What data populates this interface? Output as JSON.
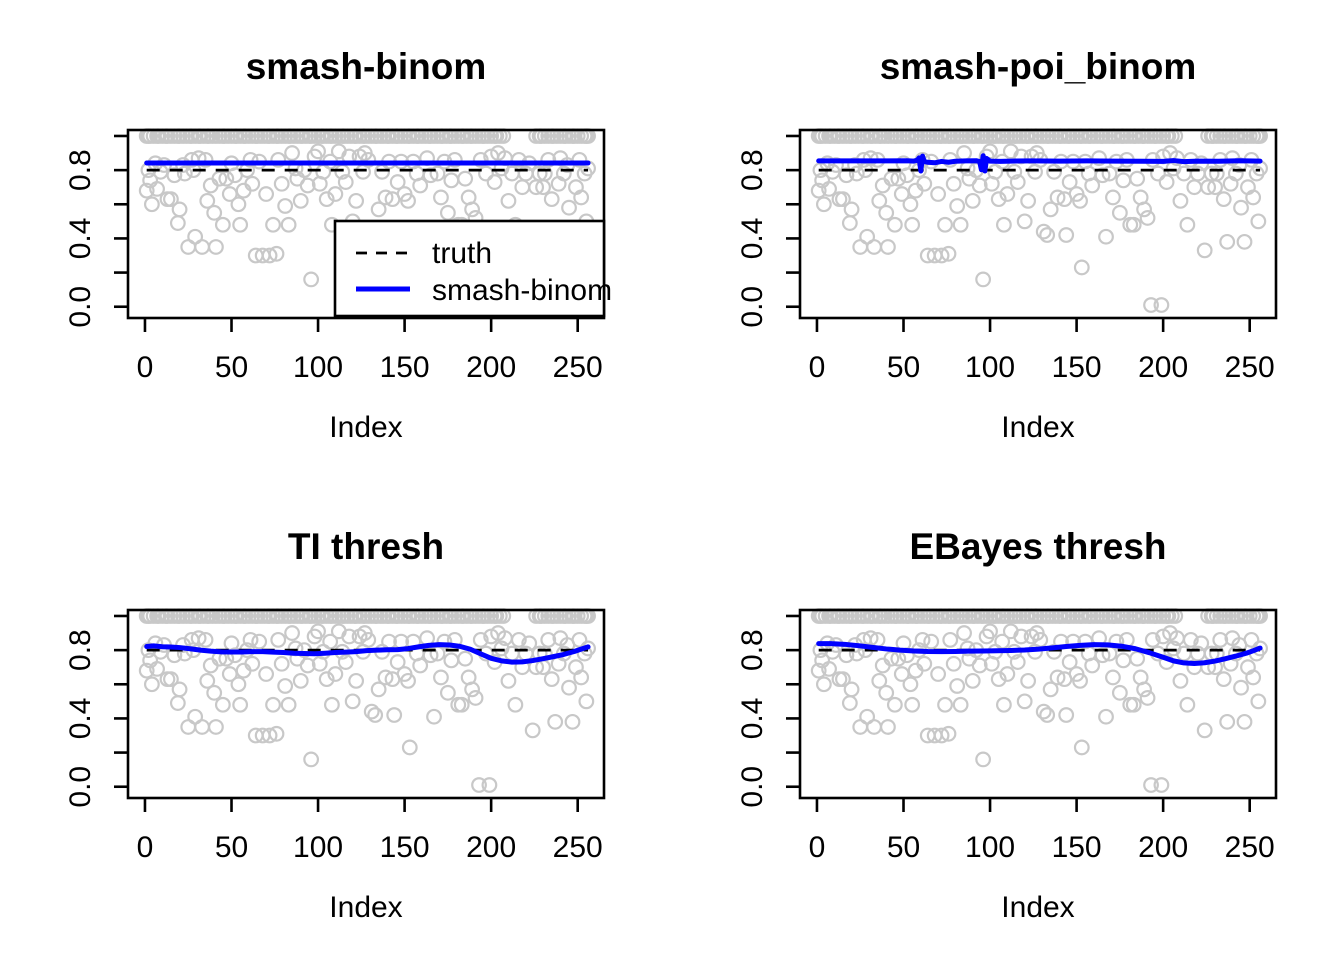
{
  "chart_data": {
    "type": "scatter",
    "layout": "2x2-grid",
    "xlabel": "Index",
    "x_ticks": [
      0,
      50,
      100,
      150,
      200,
      250
    ],
    "y_ticks": [
      0,
      0.2,
      0.4,
      0.6,
      0.8,
      1
    ],
    "y_tick_labels": [
      {
        "value": 0,
        "label": "0.0"
      },
      {
        "value": 0.4,
        "label": "0.4"
      },
      {
        "value": 0.8,
        "label": "0.8"
      }
    ],
    "xlim": [
      -9.8,
      265.2
    ],
    "ylim": [
      -0.066,
      1.035
    ],
    "colors": {
      "scatter": "#c8c8c8",
      "truth": "#000000",
      "fit": "#0000ff",
      "axis": "#000000",
      "background": "#ffffff"
    },
    "truth_line": {
      "label": "truth",
      "y": 0.8,
      "x_start": 1,
      "x_end": 256,
      "style": "dashed"
    },
    "legend": {
      "panel_index": 0,
      "entries": [
        {
          "label": "truth",
          "style": "dashed",
          "color": "#000000"
        },
        {
          "label": "smash-binom",
          "style": "solid",
          "color": "#0000ff"
        }
      ]
    },
    "panels": [
      {
        "title": "smash-binom",
        "has_legend": true,
        "fit": [
          [
            1,
            0.842
          ],
          [
            256,
            0.842
          ]
        ]
      },
      {
        "title": "smash-poi_binom",
        "has_legend": false,
        "fit": [
          [
            1,
            0.854
          ],
          [
            20,
            0.854
          ],
          [
            40,
            0.854
          ],
          [
            52,
            0.855
          ],
          [
            56,
            0.853
          ],
          [
            58,
            0.858
          ],
          [
            59,
            0.872
          ],
          [
            60,
            0.795
          ],
          [
            61,
            0.882
          ],
          [
            62,
            0.85
          ],
          [
            64,
            0.846
          ],
          [
            68,
            0.843
          ],
          [
            72,
            0.851
          ],
          [
            76,
            0.846
          ],
          [
            80,
            0.852
          ],
          [
            86,
            0.854
          ],
          [
            92,
            0.855
          ],
          [
            94,
            0.85
          ],
          [
            95,
            0.802
          ],
          [
            96,
            0.884
          ],
          [
            97,
            0.795
          ],
          [
            98,
            0.868
          ],
          [
            100,
            0.853
          ],
          [
            106,
            0.851
          ],
          [
            112,
            0.853
          ],
          [
            124,
            0.854
          ],
          [
            140,
            0.853
          ],
          [
            156,
            0.854
          ],
          [
            172,
            0.853
          ],
          [
            188,
            0.852
          ],
          [
            200,
            0.851
          ],
          [
            206,
            0.856
          ],
          [
            212,
            0.85
          ],
          [
            220,
            0.853
          ],
          [
            232,
            0.852
          ],
          [
            244,
            0.855
          ],
          [
            256,
            0.853
          ]
        ]
      },
      {
        "title": "TI thresh",
        "has_legend": false,
        "fit": [
          [
            1,
            0.821
          ],
          [
            5,
            0.825
          ],
          [
            10,
            0.82
          ],
          [
            15,
            0.818
          ],
          [
            20,
            0.815
          ],
          [
            26,
            0.808
          ],
          [
            32,
            0.8
          ],
          [
            38,
            0.794
          ],
          [
            44,
            0.79
          ],
          [
            50,
            0.789
          ],
          [
            56,
            0.789
          ],
          [
            62,
            0.791
          ],
          [
            68,
            0.791
          ],
          [
            74,
            0.788
          ],
          [
            80,
            0.786
          ],
          [
            86,
            0.782
          ],
          [
            92,
            0.78
          ],
          [
            98,
            0.779
          ],
          [
            104,
            0.782
          ],
          [
            110,
            0.786
          ],
          [
            116,
            0.788
          ],
          [
            122,
            0.791
          ],
          [
            128,
            0.797
          ],
          [
            134,
            0.8
          ],
          [
            140,
            0.802
          ],
          [
            146,
            0.803
          ],
          [
            152,
            0.809
          ],
          [
            158,
            0.819
          ],
          [
            164,
            0.828
          ],
          [
            170,
            0.832
          ],
          [
            176,
            0.83
          ],
          [
            182,
            0.822
          ],
          [
            188,
            0.805
          ],
          [
            194,
            0.778
          ],
          [
            200,
            0.752
          ],
          [
            206,
            0.737
          ],
          [
            212,
            0.73
          ],
          [
            218,
            0.731
          ],
          [
            224,
            0.739
          ],
          [
            230,
            0.75
          ],
          [
            236,
            0.762
          ],
          [
            242,
            0.775
          ],
          [
            248,
            0.792
          ],
          [
            252,
            0.806
          ],
          [
            256,
            0.819
          ]
        ]
      },
      {
        "title": "EBayes thresh",
        "has_legend": false,
        "fit": [
          [
            1,
            0.838
          ],
          [
            8,
            0.838
          ],
          [
            16,
            0.834
          ],
          [
            24,
            0.826
          ],
          [
            32,
            0.816
          ],
          [
            40,
            0.807
          ],
          [
            48,
            0.8
          ],
          [
            56,
            0.795
          ],
          [
            64,
            0.792
          ],
          [
            72,
            0.791
          ],
          [
            80,
            0.792
          ],
          [
            88,
            0.794
          ],
          [
            96,
            0.795
          ],
          [
            104,
            0.796
          ],
          [
            112,
            0.798
          ],
          [
            120,
            0.801
          ],
          [
            128,
            0.806
          ],
          [
            136,
            0.813
          ],
          [
            144,
            0.821
          ],
          [
            152,
            0.828
          ],
          [
            160,
            0.832
          ],
          [
            168,
            0.831
          ],
          [
            176,
            0.823
          ],
          [
            184,
            0.808
          ],
          [
            192,
            0.785
          ],
          [
            200,
            0.758
          ],
          [
            206,
            0.737
          ],
          [
            212,
            0.725
          ],
          [
            218,
            0.722
          ],
          [
            224,
            0.726
          ],
          [
            230,
            0.736
          ],
          [
            236,
            0.75
          ],
          [
            242,
            0.765
          ],
          [
            248,
            0.782
          ],
          [
            252,
            0.796
          ],
          [
            256,
            0.812
          ]
        ]
      }
    ],
    "shared_scatter": {
      "top_band_y": 1.0,
      "top_band_x": [
        1,
        2,
        3,
        5,
        7,
        8,
        10,
        12,
        13,
        15,
        17,
        19,
        20,
        22,
        24,
        26,
        27,
        29,
        31,
        32,
        34,
        36,
        37,
        39,
        41,
        43,
        45,
        46,
        48,
        50,
        52,
        53,
        55,
        57,
        58,
        60,
        62,
        64,
        65,
        67,
        69,
        71,
        72,
        74,
        76,
        77,
        79,
        81,
        83,
        84,
        86,
        88,
        90,
        91,
        93,
        95,
        96,
        98,
        100,
        102,
        103,
        105,
        107,
        108,
        110,
        112,
        114,
        115,
        117,
        119,
        121,
        122,
        124,
        126,
        127,
        129,
        131,
        133,
        134,
        136,
        138,
        140,
        141,
        143,
        145,
        146,
        148,
        150,
        152,
        153,
        155,
        157,
        158,
        160,
        162,
        164,
        165,
        167,
        169,
        171,
        172,
        174,
        176,
        177,
        179,
        181,
        183,
        184,
        186,
        188,
        189,
        191,
        193,
        195,
        196,
        198,
        200,
        202,
        203,
        205,
        207,
        226,
        228,
        229,
        231,
        233,
        235,
        236,
        238,
        240,
        242,
        243,
        245,
        247,
        248,
        250,
        252,
        254,
        255,
        256
      ],
      "points": [
        [
          1,
          0.68
        ],
        [
          2,
          0.8
        ],
        [
          3,
          0.74
        ],
        [
          4,
          0.6
        ],
        [
          6,
          0.84
        ],
        [
          7,
          0.69
        ],
        [
          9,
          0.79
        ],
        [
          11,
          0.83
        ],
        [
          13,
          0.63
        ],
        [
          15,
          0.63
        ],
        [
          17,
          0.77
        ],
        [
          19,
          0.49
        ],
        [
          20,
          0.57
        ],
        [
          22,
          0.83
        ],
        [
          23,
          0.78
        ],
        [
          25,
          0.35
        ],
        [
          27,
          0.86
        ],
        [
          28,
          0.8
        ],
        [
          29,
          0.41
        ],
        [
          31,
          0.87
        ],
        [
          33,
          0.35
        ],
        [
          35,
          0.86
        ],
        [
          36,
          0.62
        ],
        [
          38,
          0.71
        ],
        [
          40,
          0.55
        ],
        [
          41,
          0.35
        ],
        [
          43,
          0.75
        ],
        [
          45,
          0.48
        ],
        [
          47,
          0.75
        ],
        [
          49,
          0.66
        ],
        [
          50,
          0.84
        ],
        [
          52,
          0.77
        ],
        [
          54,
          0.6
        ],
        [
          55,
          0.48
        ],
        [
          57,
          0.68
        ],
        [
          59,
          0.8
        ],
        [
          61,
          0.86
        ],
        [
          62,
          0.72
        ],
        [
          64,
          0.3
        ],
        [
          66,
          0.85
        ],
        [
          68,
          0.3
        ],
        [
          70,
          0.66
        ],
        [
          72,
          0.3
        ],
        [
          74,
          0.48
        ],
        [
          76,
          0.31
        ],
        [
          77,
          0.86
        ],
        [
          79,
          0.72
        ],
        [
          81,
          0.59
        ],
        [
          83,
          0.48
        ],
        [
          85,
          0.9
        ],
        [
          87,
          0.81
        ],
        [
          88,
          0.75
        ],
        [
          90,
          0.62
        ],
        [
          92,
          0.8
        ],
        [
          94,
          0.71
        ],
        [
          96,
          0.16
        ],
        [
          98,
          0.88
        ],
        [
          100,
          0.91
        ],
        [
          101,
          0.72
        ],
        [
          103,
          0.79
        ],
        [
          105,
          0.63
        ],
        [
          107,
          0.85
        ],
        [
          108,
          0.48
        ],
        [
          110,
          0.66
        ],
        [
          112,
          0.91
        ],
        [
          114,
          0.79
        ],
        [
          116,
          0.73
        ],
        [
          118,
          0.88
        ],
        [
          120,
          0.5
        ],
        [
          122,
          0.62
        ],
        [
          124,
          0.88
        ],
        [
          126,
          0.79
        ],
        [
          127,
          0.9
        ],
        [
          129,
          0.86
        ],
        [
          131,
          0.44
        ],
        [
          133,
          0.42
        ],
        [
          135,
          0.57
        ],
        [
          137,
          0.79
        ],
        [
          139,
          0.64
        ],
        [
          141,
          0.85
        ],
        [
          143,
          0.63
        ],
        [
          144,
          0.42
        ],
        [
          146,
          0.73
        ],
        [
          148,
          0.85
        ],
        [
          150,
          0.66
        ],
        [
          152,
          0.62
        ],
        [
          153,
          0.23
        ],
        [
          155,
          0.85
        ],
        [
          157,
          0.78
        ],
        [
          159,
          0.71
        ],
        [
          163,
          0.87
        ],
        [
          165,
          0.77
        ],
        [
          167,
          0.41
        ],
        [
          169,
          0.78
        ],
        [
          171,
          0.64
        ],
        [
          173,
          0.85
        ],
        [
          175,
          0.55
        ],
        [
          177,
          0.74
        ],
        [
          179,
          0.86
        ],
        [
          181,
          0.48
        ],
        [
          183,
          0.48
        ],
        [
          185,
          0.75
        ],
        [
          187,
          0.64
        ],
        [
          189,
          0.57
        ],
        [
          191,
          0.52
        ],
        [
          193,
          0.01
        ],
        [
          194,
          0.86
        ],
        [
          197,
          0.78
        ],
        [
          199,
          0.01
        ],
        [
          200,
          0.88
        ],
        [
          202,
          0.73
        ],
        [
          204,
          0.9
        ],
        [
          206,
          0.81
        ],
        [
          208,
          0.87
        ],
        [
          210,
          0.62
        ],
        [
          212,
          0.78
        ],
        [
          214,
          0.48
        ],
        [
          216,
          0.86
        ],
        [
          218,
          0.7
        ],
        [
          220,
          0.78
        ],
        [
          222,
          0.84
        ],
        [
          224,
          0.33
        ],
        [
          226,
          0.7
        ],
        [
          228,
          0.78
        ],
        [
          230,
          0.7
        ],
        [
          231,
          0.78
        ],
        [
          233,
          0.86
        ],
        [
          235,
          0.63
        ],
        [
          237,
          0.38
        ],
        [
          239,
          0.72
        ],
        [
          240,
          0.87
        ],
        [
          242,
          0.78
        ],
        [
          244,
          0.83
        ],
        [
          245,
          0.58
        ],
        [
          247,
          0.38
        ],
        [
          249,
          0.7
        ],
        [
          251,
          0.86
        ],
        [
          252,
          0.64
        ],
        [
          254,
          0.78
        ],
        [
          255,
          0.5
        ],
        [
          256,
          0.81
        ]
      ]
    }
  }
}
